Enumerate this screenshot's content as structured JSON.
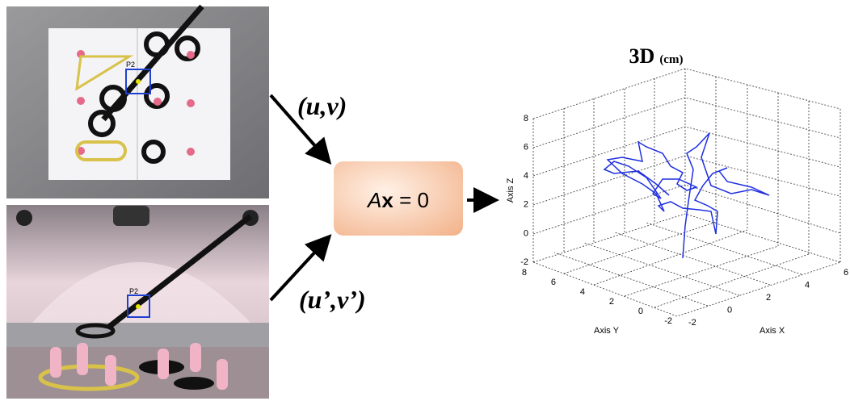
{
  "images": {
    "top": {
      "marker_label": "P2"
    },
    "bottom": {
      "marker_label": "P2"
    }
  },
  "inputs": {
    "top": "(u,v)",
    "bottom": "(u’,v’)"
  },
  "equation": {
    "matrix": "A",
    "vector": "x",
    "rest": " = 0"
  },
  "plot": {
    "title": "3D",
    "title_unit": "(cm)",
    "z_label": "Axis Z",
    "y_label": "Axis Y",
    "x_label": "Axis X",
    "z_ticks": [
      8,
      6,
      4,
      2,
      0,
      -2
    ],
    "y_ticks": [
      8,
      6,
      4,
      2,
      0,
      -2
    ],
    "x_ticks": [
      -2,
      0,
      2,
      4,
      6
    ]
  }
}
